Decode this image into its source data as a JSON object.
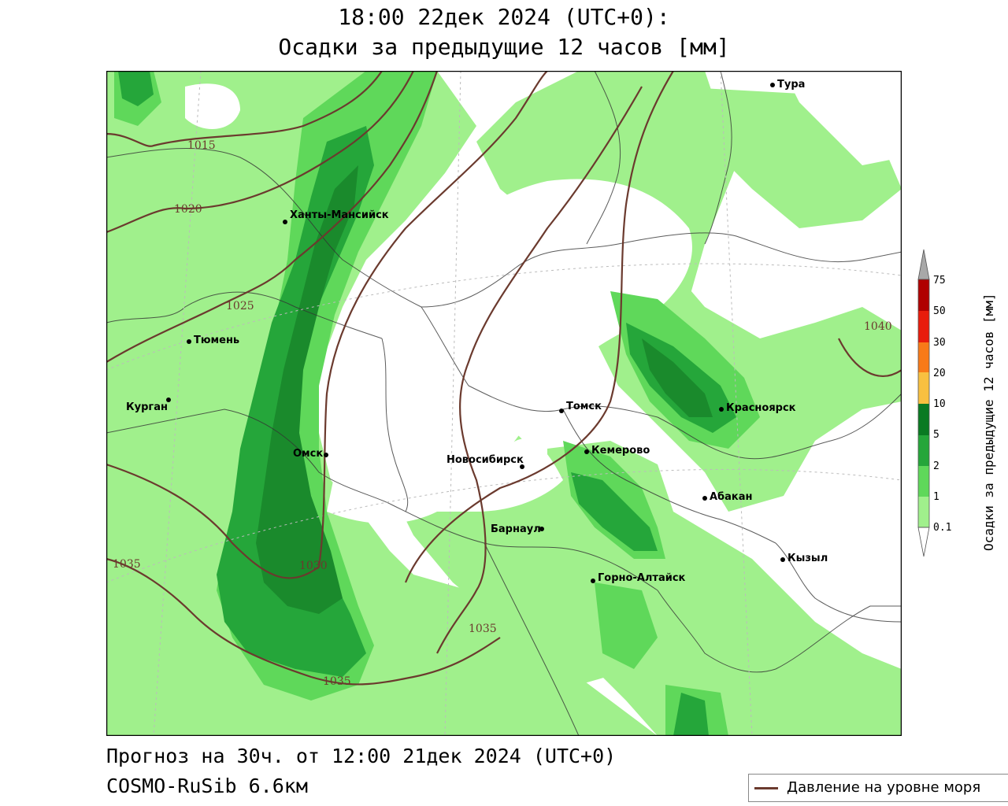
{
  "header": {
    "line1": "18:00 22дек 2024 (UTC+0):",
    "line2": "Осадки за предыдущие 12 часов [мм]"
  },
  "footer": {
    "forecast": "Прогноз на 30ч. от 12:00 21дек 2024 (UTC+0)",
    "model": "COSMO-RuSib 6.6км"
  },
  "legend": {
    "pressure_label": "Давление на уровне моря",
    "pressure_color": "#6b3a2e"
  },
  "colorbar": {
    "title": "Осадки за предыдущие 12 часов [мм]",
    "ticks": [
      "0.1",
      "1",
      "2",
      "5",
      "10",
      "20",
      "30",
      "50",
      "75"
    ],
    "colors": [
      "#a0f08c",
      "#5fd85a",
      "#25a63a",
      "#0a7a22",
      "#f8c040",
      "#f87a18",
      "#e81c0c",
      "#b00000",
      "#a8a8a8"
    ]
  },
  "map": {
    "precip_colors": {
      "light": "#a0f08c",
      "moderate": "#5fd85a",
      "heavy": "#25a63a",
      "very_heavy": "#1a8a2c"
    },
    "cities": [
      {
        "name": "Тура"
      },
      {
        "name": "Ханты-Мансийск"
      },
      {
        "name": "Тюмень"
      },
      {
        "name": "Курган"
      },
      {
        "name": "Омск"
      },
      {
        "name": "Томск"
      },
      {
        "name": "Красноярск"
      },
      {
        "name": "Кемерово"
      },
      {
        "name": "Новосибирск"
      },
      {
        "name": "Абакан"
      },
      {
        "name": "Барнаул"
      },
      {
        "name": "Кызыл"
      },
      {
        "name": "Горно-Алтайск"
      }
    ],
    "isobars": [
      "1015",
      "1020",
      "1025",
      "1030",
      "1035",
      "1035",
      "1035",
      "1040"
    ]
  }
}
